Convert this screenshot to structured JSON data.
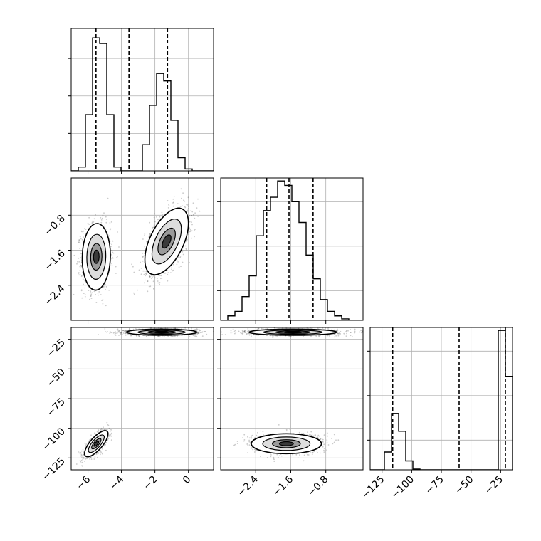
{
  "chart_data": {
    "type": "corner",
    "title": "",
    "colors": {
      "line": "#000000",
      "scatter": "#444444",
      "grid": "#b0b0b0",
      "background": "#ffffff"
    },
    "grid": true,
    "dimensions": [
      {
        "key": "x0",
        "range": [
          -7,
          1.5
        ],
        "ticks": [
          -6,
          -4,
          -2,
          0
        ],
        "tick_labels": [
          "−6",
          "−4",
          "−2",
          "0"
        ]
      },
      {
        "key": "x1",
        "range": [
          -3.2,
          0.05
        ],
        "ticks": [
          -2.4,
          -1.6,
          -0.8
        ],
        "tick_labels": [
          "−2.4",
          "−1.6",
          "−0.8"
        ]
      },
      {
        "key": "x2",
        "range": [
          -135,
          -15
        ],
        "ticks": [
          -125,
          -100,
          -75,
          -50,
          -25
        ],
        "tick_labels": [
          "−125",
          "−100",
          "−75",
          "−50",
          "−25"
        ]
      }
    ],
    "histograms": [
      {
        "dim": 0,
        "bin_edges": [
          -7.0,
          -6.575,
          -6.15,
          -5.725,
          -5.3,
          -4.875,
          -4.45,
          -4.025,
          -3.6,
          -3.175,
          -2.75,
          -2.325,
          -1.9,
          -1.475,
          -1.05,
          -0.625,
          -0.2,
          0.225,
          0.65,
          1.075,
          1.5
        ],
        "counts": [
          0,
          10,
          150,
          355,
          340,
          150,
          10,
          0,
          0,
          0,
          70,
          175,
          260,
          240,
          135,
          35,
          5,
          0,
          0,
          0
        ],
        "ymax": 380,
        "ticks": [
          100,
          200,
          300
        ],
        "quantiles": [
          -5.52,
          -3.55,
          -1.25
        ]
      },
      {
        "dim": 1,
        "bin_edges": [
          -3.2,
          -3.0375,
          -2.875,
          -2.7125,
          -2.55,
          -2.3875,
          -2.225,
          -2.0625,
          -1.9,
          -1.7375,
          -1.575,
          -1.4125,
          -1.25,
          -1.0875,
          -0.925,
          -0.7625,
          -0.6,
          -0.4375,
          -0.275,
          -0.1125,
          0.05
        ],
        "counts": [
          0,
          15,
          30,
          80,
          150,
          285,
          370,
          415,
          470,
          455,
          400,
          330,
          220,
          140,
          70,
          30,
          15,
          5,
          0,
          0
        ],
        "ymax": 480,
        "ticks": [
          100,
          250,
          400
        ],
        "quantiles": [
          -2.15,
          -1.64,
          -1.09
        ]
      },
      {
        "dim": 2,
        "bin_edges": [
          -135,
          -129,
          -123,
          -117,
          -111,
          -105,
          -99,
          -93,
          -87,
          -81,
          -75,
          -69,
          -63,
          -57,
          -51,
          -45,
          -39,
          -33,
          -27,
          -21,
          -15
        ],
        "counts": [
          0,
          0,
          120,
          380,
          260,
          60,
          5,
          0,
          0,
          0,
          0,
          0,
          0,
          0,
          0,
          0,
          0,
          0,
          940,
          630
        ],
        "ymax": 960,
        "ticks": [
          200,
          500,
          800
        ],
        "quantiles": [
          -116,
          -60,
          -21
        ]
      }
    ],
    "pairs": [
      {
        "x": 0,
        "y": 1,
        "clusters": [
          {
            "cx": -5.5,
            "cy": -1.75,
            "sx": 0.42,
            "sy": 0.38,
            "rho": 0.05,
            "n": 1300
          },
          {
            "cx": -1.3,
            "cy": -1.4,
            "sx": 0.65,
            "sy": 0.38,
            "rho": 0.55,
            "n": 1300
          }
        ]
      },
      {
        "x": 0,
        "y": 2,
        "clusters": [
          {
            "cx": -5.5,
            "cy": -113,
            "sx": 0.35,
            "sy": 5.5,
            "rho": 0.75,
            "n": 900
          },
          {
            "cx": -1.6,
            "cy": -19,
            "sx": 1.05,
            "sy": 1.3,
            "rho": 0.0,
            "n": 1600
          }
        ]
      },
      {
        "x": 1,
        "y": 2,
        "clusters": [
          {
            "cx": -1.7,
            "cy": -113,
            "sx": 0.4,
            "sy": 4.2,
            "rho": 0.0,
            "n": 1100
          },
          {
            "cx": -1.55,
            "cy": -19,
            "sx": 0.5,
            "sy": 1.3,
            "rho": 0.0,
            "n": 1600
          }
        ]
      }
    ]
  }
}
